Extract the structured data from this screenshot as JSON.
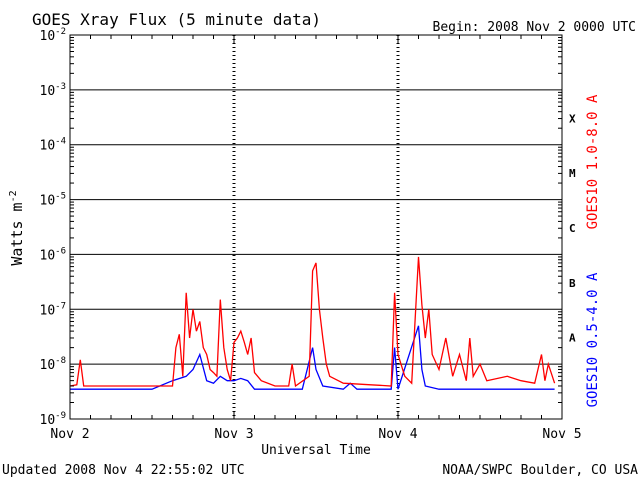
{
  "header": {
    "title": "GOES Xray Flux (5 minute data)",
    "begin": "Begin:  2008 Nov 2 0000 UTC"
  },
  "footer": {
    "updated": "Updated 2008 Nov  4 22:55:02 UTC",
    "credit": "NOAA/SWPC Boulder, CO USA"
  },
  "colors": {
    "long_channel": "#ff0000",
    "short_channel": "#0000ff",
    "grid": "#000000",
    "background": "#ffffff"
  },
  "chart_data": {
    "type": "line",
    "title": "GOES Xray Flux (5 minute data)",
    "xlabel": "Universal Time",
    "ylabel_main": "Watts m",
    "ylabel_exp": "-2",
    "y_scale": "log",
    "ylim": [
      1e-09,
      0.01
    ],
    "y_ticks": [
      {
        "value": 0.01,
        "base": "10",
        "exp": "-2"
      },
      {
        "value": 0.001,
        "base": "10",
        "exp": "-3"
      },
      {
        "value": 0.0001,
        "base": "10",
        "exp": "-4"
      },
      {
        "value": 1e-05,
        "base": "10",
        "exp": "-5"
      },
      {
        "value": 1e-06,
        "base": "10",
        "exp": "-6"
      },
      {
        "value": 1e-07,
        "base": "10",
        "exp": "-7"
      },
      {
        "value": 1e-08,
        "base": "10",
        "exp": "-8"
      },
      {
        "value": 1e-09,
        "base": "10",
        "exp": "-9"
      }
    ],
    "xlim": [
      "2008-11-02 00:00",
      "2008-11-05 00:00"
    ],
    "x_ticks": [
      "Nov 2",
      "Nov 3",
      "Nov 4",
      "Nov 5"
    ],
    "flare_classes": [
      {
        "label": "X",
        "lower": 0.0001
      },
      {
        "label": "M",
        "lower": 1e-05
      },
      {
        "label": "C",
        "lower": 1e-06
      },
      {
        "label": "B",
        "lower": 1e-07
      },
      {
        "label": "A",
        "lower": 1e-08
      }
    ],
    "grid": "horizontal lines at each decade; dashed vertical lines at day boundaries",
    "legend_placement": "right side, rotated",
    "series": [
      {
        "name": "GOES10 1.0-8.0 A",
        "color": "#ff0000",
        "points": [
          [
            "2008-11-02 00:00",
            4e-09
          ],
          [
            "2008-11-02 01:00",
            4.2e-09
          ],
          [
            "2008-11-02 01:30",
            1.2e-08
          ],
          [
            "2008-11-02 02:00",
            4e-09
          ],
          [
            "2008-11-02 06:00",
            4e-09
          ],
          [
            "2008-11-02 12:00",
            4e-09
          ],
          [
            "2008-11-02 15:00",
            4e-09
          ],
          [
            "2008-11-02 15:30",
            2e-08
          ],
          [
            "2008-11-02 16:00",
            3.5e-08
          ],
          [
            "2008-11-02 16:30",
            6e-09
          ],
          [
            "2008-11-02 17:00",
            2e-07
          ],
          [
            "2008-11-02 17:30",
            3e-08
          ],
          [
            "2008-11-02 18:00",
            1e-07
          ],
          [
            "2008-11-02 18:30",
            4e-08
          ],
          [
            "2008-11-02 19:00",
            6e-08
          ],
          [
            "2008-11-02 19:30",
            2e-08
          ],
          [
            "2008-11-02 20:00",
            1.5e-08
          ],
          [
            "2008-11-02 20:30",
            8e-09
          ],
          [
            "2008-11-02 21:00",
            7e-09
          ],
          [
            "2008-11-02 21:30",
            6e-09
          ],
          [
            "2008-11-02 22:00",
            1.5e-07
          ],
          [
            "2008-11-02 22:30",
            2e-08
          ],
          [
            "2008-11-02 23:00",
            8e-09
          ],
          [
            "2008-11-02 23:30",
            5e-09
          ],
          [
            "2008-11-03 00:00",
            2.5e-08
          ],
          [
            "2008-11-03 00:30",
            3e-08
          ],
          [
            "2008-11-03 01:00",
            4e-08
          ],
          [
            "2008-11-03 01:30",
            2.5e-08
          ],
          [
            "2008-11-03 02:00",
            1.5e-08
          ],
          [
            "2008-11-03 02:30",
            3e-08
          ],
          [
            "2008-11-03 03:00",
            7e-09
          ],
          [
            "2008-11-03 04:00",
            5e-09
          ],
          [
            "2008-11-03 06:00",
            4e-09
          ],
          [
            "2008-11-03 08:00",
            4e-09
          ],
          [
            "2008-11-03 08:30",
            1e-08
          ],
          [
            "2008-11-03 09:00",
            4e-09
          ],
          [
            "2008-11-03 11:00",
            6e-09
          ],
          [
            "2008-11-03 11:30",
            5e-07
          ],
          [
            "2008-11-03 12:00",
            7e-07
          ],
          [
            "2008-11-03 12:30",
            1e-07
          ],
          [
            "2008-11-03 13:00",
            3e-08
          ],
          [
            "2008-11-03 13:30",
            1e-08
          ],
          [
            "2008-11-03 14:00",
            6e-09
          ],
          [
            "2008-11-03 16:00",
            4.5e-09
          ],
          [
            "2008-11-03 20:00",
            4.2e-09
          ],
          [
            "2008-11-03 23:00",
            4e-09
          ],
          [
            "2008-11-03 23:30",
            2e-07
          ],
          [
            "2008-11-04 00:00",
            1.5e-08
          ],
          [
            "2008-11-04 01:00",
            6e-09
          ],
          [
            "2008-11-04 02:00",
            4.5e-09
          ],
          [
            "2008-11-04 03:00",
            9e-07
          ],
          [
            "2008-11-04 03:30",
            1.2e-07
          ],
          [
            "2008-11-04 04:00",
            3e-08
          ],
          [
            "2008-11-04 04:30",
            1e-07
          ],
          [
            "2008-11-04 05:00",
            1.5e-08
          ],
          [
            "2008-11-04 06:00",
            8e-09
          ],
          [
            "2008-11-04 07:00",
            3e-08
          ],
          [
            "2008-11-04 08:00",
            6e-09
          ],
          [
            "2008-11-04 09:00",
            1.5e-08
          ],
          [
            "2008-11-04 10:00",
            5e-09
          ],
          [
            "2008-11-04 10:30",
            3e-08
          ],
          [
            "2008-11-04 11:00",
            6e-09
          ],
          [
            "2008-11-04 12:00",
            1e-08
          ],
          [
            "2008-11-04 13:00",
            5e-09
          ],
          [
            "2008-11-04 16:00",
            6e-09
          ],
          [
            "2008-11-04 18:00",
            5e-09
          ],
          [
            "2008-11-04 20:00",
            4.5e-09
          ],
          [
            "2008-11-04 21:00",
            1.5e-08
          ],
          [
            "2008-11-04 21:30",
            5e-09
          ],
          [
            "2008-11-04 22:00",
            1e-08
          ],
          [
            "2008-11-04 22:55",
            4.5e-09
          ]
        ]
      },
      {
        "name": "GOES10 0.5-4.0 A",
        "color": "#0000ff",
        "points": [
          [
            "2008-11-02 00:00",
            3.5e-09
          ],
          [
            "2008-11-02 06:00",
            3.5e-09
          ],
          [
            "2008-11-02 12:00",
            3.5e-09
          ],
          [
            "2008-11-02 15:00",
            5e-09
          ],
          [
            "2008-11-02 17:00",
            6e-09
          ],
          [
            "2008-11-02 18:00",
            8e-09
          ],
          [
            "2008-11-02 19:00",
            1.5e-08
          ],
          [
            "2008-11-02 20:00",
            5e-09
          ],
          [
            "2008-11-02 21:00",
            4.5e-09
          ],
          [
            "2008-11-02 22:00",
            6e-09
          ],
          [
            "2008-11-02 23:00",
            5e-09
          ],
          [
            "2008-11-03 00:00",
            5e-09
          ],
          [
            "2008-11-03 01:00",
            5.5e-09
          ],
          [
            "2008-11-03 02:00",
            5e-09
          ],
          [
            "2008-11-03 03:00",
            3.5e-09
          ],
          [
            "2008-11-03 06:00",
            3.5e-09
          ],
          [
            "2008-11-03 10:00",
            3.5e-09
          ],
          [
            "2008-11-03 11:30",
            2e-08
          ],
          [
            "2008-11-03 12:00",
            8e-09
          ],
          [
            "2008-11-03 13:00",
            4e-09
          ],
          [
            "2008-11-03 16:00",
            3.5e-09
          ],
          [
            "2008-11-03 17:00",
            4.5e-09
          ],
          [
            "2008-11-03 18:00",
            3.5e-09
          ],
          [
            "2008-11-03 23:00",
            3.5e-09
          ],
          [
            "2008-11-03 23:30",
            2e-08
          ],
          [
            "2008-11-04 00:00",
            3.5e-09
          ],
          [
            "2008-11-04 03:00",
            5e-08
          ],
          [
            "2008-11-04 03:30",
            8e-09
          ],
          [
            "2008-11-04 04:00",
            4e-09
          ],
          [
            "2008-11-04 06:00",
            3.5e-09
          ],
          [
            "2008-11-04 10:00",
            3.5e-09
          ],
          [
            "2008-11-04 12:00",
            3.5e-09
          ],
          [
            "2008-11-04 18:00",
            3.5e-09
          ],
          [
            "2008-11-04 22:55",
            3.5e-09
          ]
        ]
      }
    ]
  }
}
